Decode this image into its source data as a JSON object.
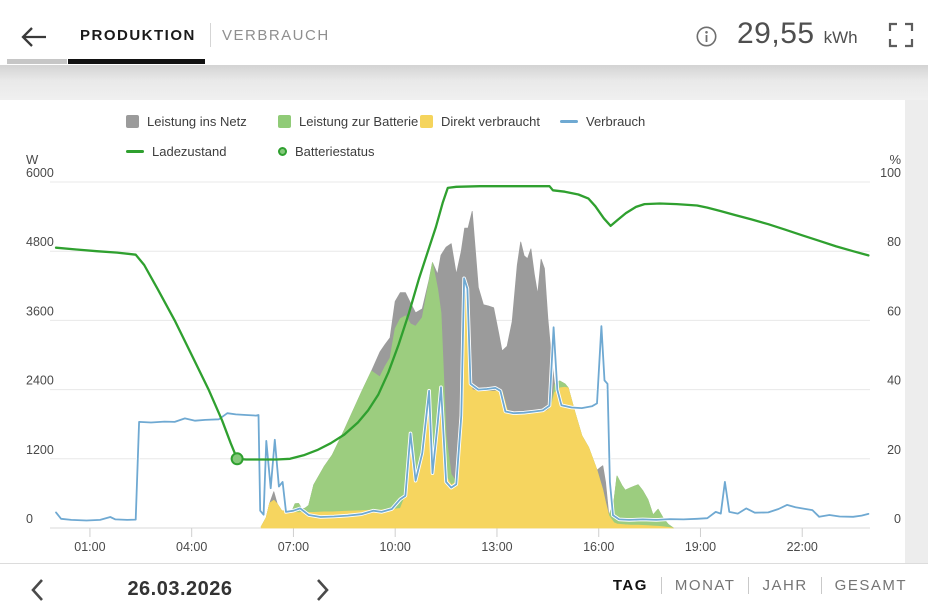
{
  "header": {
    "tabs": [
      {
        "label": "PRODUKTION",
        "active": true
      },
      {
        "label": "VERBRAUCH",
        "active": false
      }
    ],
    "total_value": "29,55",
    "total_unit": "kWh",
    "back_icon": "back-arrow",
    "info_icon": "info-circle",
    "fullscreen_icon": "fullscreen-corners"
  },
  "date_nav": {
    "date": "26.03.2026",
    "prev_icon": "chevron-left",
    "next_icon": "chevron-right"
  },
  "range_tabs": [
    {
      "label": "TAG",
      "active": true
    },
    {
      "label": "MONAT",
      "active": false
    },
    {
      "label": "JAHR",
      "active": false
    },
    {
      "label": "GESAMT",
      "active": false
    }
  ],
  "chart_data": {
    "type": "area",
    "stacked_areas": true,
    "x_unit": "hours",
    "x_ticks": [
      "01:00",
      "04:00",
      "07:00",
      "10:00",
      "13:00",
      "16:00",
      "19:00",
      "22:00"
    ],
    "x_tick_hours": [
      1,
      4,
      7,
      10,
      13,
      16,
      19,
      22
    ],
    "x_range": [
      0,
      24
    ],
    "w_axis": {
      "label": "W",
      "ticks": [
        0,
        1200,
        2400,
        3600,
        4800,
        6000
      ],
      "max": 6000
    },
    "pct_axis": {
      "label": "%",
      "ticks": [
        0,
        20,
        40,
        60,
        80,
        100
      ],
      "max": 100
    },
    "grid": true,
    "legend": [
      {
        "label": "Leistung ins Netz",
        "shape": "square",
        "color": "#9b9b9b"
      },
      {
        "label": "Leistung zur Batterie",
        "shape": "square",
        "color": "#90cb77"
      },
      {
        "label": "Direkt verbraucht",
        "shape": "square",
        "color": "#f5d45c"
      },
      {
        "label": "Verbrauch",
        "shape": "line",
        "color": "#6fa9d2"
      },
      {
        "label": "Ladezustand",
        "shape": "line",
        "color": "#2fa02f"
      },
      {
        "label": "Batteriestatus",
        "shape": "circle",
        "color": "#85c97b",
        "border": "#2fa02f"
      }
    ],
    "colors": {
      "ins_netz": "#9b9b9b",
      "zur_batterie": "#9ccd7f",
      "direkt": "#f6d55f",
      "verbrauch": "#6fa9d2",
      "ladezustand": "#2fa02f",
      "grid": "#e8e8e8",
      "axis_text": "#4a4a4a"
    },
    "stack": {
      "t": [
        6.05,
        6.2,
        6.3,
        6.42,
        6.52,
        6.65,
        6.8,
        6.95,
        7.05,
        7.15,
        7.25,
        7.35,
        7.45,
        7.6,
        7.9,
        8.15,
        8.5,
        9.0,
        9.3,
        9.55,
        9.7,
        9.85,
        10.0,
        10.15,
        10.3,
        10.45,
        10.6,
        10.8,
        11.0,
        11.1,
        11.25,
        11.35,
        11.5,
        11.65,
        11.8,
        11.95,
        12.05,
        12.15,
        12.27,
        12.45,
        12.6,
        12.75,
        12.9,
        13.05,
        13.15,
        13.3,
        13.45,
        13.6,
        13.7,
        13.8,
        13.9,
        14.0,
        14.1,
        14.2,
        14.3,
        14.4,
        14.5,
        14.6,
        14.7,
        14.85,
        15.0,
        15.1,
        15.3,
        15.5,
        15.7,
        15.95,
        16.05,
        16.12,
        16.2,
        16.3,
        16.45,
        16.54,
        16.68,
        16.78,
        16.95,
        17.16,
        17.3,
        17.45,
        17.6,
        17.75,
        17.9,
        18.05,
        18.2
      ],
      "direkt": [
        20,
        180,
        430,
        480,
        420,
        300,
        280,
        280,
        270,
        265,
        270,
        265,
        270,
        270,
        280,
        280,
        290,
        300,
        310,
        310,
        320,
        320,
        330,
        340,
        560,
        1640,
        820,
        1300,
        2380,
        950,
        1800,
        2400,
        900,
        750,
        800,
        2000,
        4250,
        3300,
        2400,
        2370,
        2370,
        2370,
        2370,
        2375,
        2380,
        2050,
        2000,
        1960,
        1960,
        1970,
        1970,
        1990,
        2000,
        2000,
        2010,
        2020,
        2040,
        2100,
        2350,
        2430,
        2440,
        2430,
        2000,
        1600,
        1400,
        1000,
        800,
        660,
        450,
        210,
        90,
        70,
        60,
        55,
        50,
        50,
        45,
        40,
        35,
        30,
        20,
        10,
        0
      ],
      "zur_batterie": [
        0,
        0,
        0,
        0,
        0,
        0,
        0,
        0,
        150,
        160,
        60,
        80,
        120,
        480,
        780,
        990,
        1410,
        2050,
        2410,
        2310,
        2480,
        2630,
        3130,
        3290,
        3120,
        1900,
        2680,
        2350,
        1900,
        3650,
        2350,
        1330,
        700,
        180,
        0,
        0,
        0,
        0,
        0,
        0,
        0,
        0,
        0,
        0,
        0,
        0,
        0,
        0,
        0,
        0,
        0,
        0,
        0,
        0,
        0,
        0,
        0,
        0,
        140,
        120,
        60,
        0,
        0,
        0,
        0,
        0,
        0,
        0,
        0,
        0,
        380,
        830,
        680,
        600,
        650,
        700,
        600,
        450,
        190,
        295,
        150,
        50,
        0
      ],
      "ins_netz": [
        0,
        0,
        0,
        150,
        0,
        0,
        0,
        0,
        0,
        0,
        0,
        0,
        0,
        0,
        0,
        0,
        0,
        0,
        0,
        430,
        380,
        350,
        470,
        450,
        400,
        360,
        230,
        150,
        20,
        0,
        250,
        1000,
        3270,
        4000,
        3600,
        2800,
        950,
        1900,
        3090,
        1800,
        1500,
        1480,
        1450,
        1000,
        690,
        1100,
        1580,
        2600,
        3000,
        2750,
        2700,
        2850,
        2400,
        2050,
        2650,
        2480,
        1600,
        900,
        0,
        0,
        0,
        0,
        0,
        0,
        0,
        0,
        250,
        420,
        350,
        0,
        0,
        0,
        0,
        0,
        0,
        0,
        0,
        0,
        0,
        0,
        0,
        0,
        0
      ]
    },
    "verbrauch_w": [
      [
        0,
        270
      ],
      [
        0.15,
        160
      ],
      [
        0.45,
        140
      ],
      [
        0.9,
        130
      ],
      [
        1.3,
        140
      ],
      [
        1.6,
        190
      ],
      [
        1.75,
        150
      ],
      [
        2.1,
        140
      ],
      [
        2.35,
        145
      ],
      [
        2.45,
        1840
      ],
      [
        2.8,
        1830
      ],
      [
        3.2,
        1845
      ],
      [
        3.5,
        1840
      ],
      [
        3.8,
        1900
      ],
      [
        4.1,
        1860
      ],
      [
        4.4,
        1875
      ],
      [
        4.8,
        1885
      ],
      [
        5.05,
        1990
      ],
      [
        5.3,
        1970
      ],
      [
        5.6,
        1960
      ],
      [
        5.9,
        1950
      ],
      [
        5.97,
        1960
      ],
      [
        6.02,
        300
      ],
      [
        6.12,
        230
      ],
      [
        6.2,
        1510
      ],
      [
        6.33,
        690
      ],
      [
        6.45,
        1530
      ],
      [
        6.57,
        720
      ],
      [
        6.68,
        800
      ],
      [
        6.78,
        280
      ],
      [
        7.0,
        300
      ],
      [
        7.2,
        340
      ],
      [
        7.45,
        225
      ],
      [
        7.8,
        190
      ],
      [
        8.2,
        200
      ],
      [
        8.6,
        215
      ],
      [
        9.0,
        240
      ],
      [
        9.35,
        300
      ],
      [
        9.6,
        280
      ],
      [
        9.9,
        330
      ],
      [
        10.15,
        500
      ],
      [
        10.3,
        560
      ],
      [
        10.45,
        1640
      ],
      [
        10.6,
        820
      ],
      [
        10.8,
        1300
      ],
      [
        11.0,
        2380
      ],
      [
        11.1,
        950
      ],
      [
        11.25,
        1800
      ],
      [
        11.35,
        2440
      ],
      [
        11.5,
        800
      ],
      [
        11.65,
        700
      ],
      [
        11.8,
        760
      ],
      [
        11.95,
        1950
      ],
      [
        12.03,
        4330
      ],
      [
        12.13,
        4150
      ],
      [
        12.22,
        2500
      ],
      [
        12.45,
        2400
      ],
      [
        12.7,
        2410
      ],
      [
        12.95,
        2430
      ],
      [
        13.1,
        2380
      ],
      [
        13.25,
        2020
      ],
      [
        13.5,
        1990
      ],
      [
        13.8,
        2000
      ],
      [
        14.1,
        2020
      ],
      [
        14.35,
        2040
      ],
      [
        14.55,
        2120
      ],
      [
        14.67,
        3480
      ],
      [
        14.78,
        2400
      ],
      [
        14.9,
        2130
      ],
      [
        15.2,
        2090
      ],
      [
        15.5,
        2080
      ],
      [
        15.8,
        2110
      ],
      [
        15.95,
        2160
      ],
      [
        16.08,
        3500
      ],
      [
        16.17,
        2560
      ],
      [
        16.26,
        2500
      ],
      [
        16.33,
        800
      ],
      [
        16.42,
        220
      ],
      [
        16.6,
        150
      ],
      [
        16.9,
        140
      ],
      [
        17.3,
        150
      ],
      [
        17.7,
        140
      ],
      [
        18.1,
        155
      ],
      [
        18.5,
        150
      ],
      [
        18.9,
        160
      ],
      [
        19.2,
        170
      ],
      [
        19.45,
        280
      ],
      [
        19.6,
        250
      ],
      [
        19.72,
        800
      ],
      [
        19.85,
        280
      ],
      [
        20.1,
        250
      ],
      [
        20.35,
        340
      ],
      [
        20.6,
        265
      ],
      [
        21.0,
        270
      ],
      [
        21.3,
        330
      ],
      [
        21.55,
        400
      ],
      [
        21.8,
        360
      ],
      [
        22.1,
        330
      ],
      [
        22.3,
        310
      ],
      [
        22.5,
        195
      ],
      [
        22.8,
        225
      ],
      [
        23.1,
        200
      ],
      [
        23.5,
        195
      ],
      [
        23.75,
        215
      ],
      [
        23.95,
        245
      ]
    ],
    "ladezustand_pct": [
      [
        0,
        81
      ],
      [
        0.6,
        80.5
      ],
      [
        1.2,
        80
      ],
      [
        1.8,
        79.6
      ],
      [
        2.35,
        79
      ],
      [
        2.6,
        76
      ],
      [
        3.0,
        69
      ],
      [
        3.5,
        60
      ],
      [
        4.0,
        50
      ],
      [
        4.5,
        40
      ],
      [
        4.9,
        31
      ],
      [
        5.15,
        24.5
      ],
      [
        5.34,
        20
      ],
      [
        5.6,
        19.8
      ],
      [
        6.0,
        19.8
      ],
      [
        6.5,
        19.8
      ],
      [
        6.9,
        20
      ],
      [
        7.3,
        21
      ],
      [
        7.7,
        22.5
      ],
      [
        8.1,
        24.5
      ],
      [
        8.5,
        27
      ],
      [
        8.9,
        30.5
      ],
      [
        9.2,
        34
      ],
      [
        9.5,
        38.5
      ],
      [
        9.8,
        45
      ],
      [
        10.1,
        53
      ],
      [
        10.4,
        62
      ],
      [
        10.7,
        72
      ],
      [
        11.0,
        81
      ],
      [
        11.2,
        87
      ],
      [
        11.4,
        94
      ],
      [
        11.55,
        98.3
      ],
      [
        11.8,
        98.6
      ],
      [
        12.5,
        98.8
      ],
      [
        13.5,
        98.8
      ],
      [
        14.55,
        98.8
      ],
      [
        14.65,
        97.6
      ],
      [
        15.0,
        97.2
      ],
      [
        15.4,
        96.4
      ],
      [
        15.7,
        95.2
      ],
      [
        15.9,
        93
      ],
      [
        16.15,
        89.5
      ],
      [
        16.35,
        87.3
      ],
      [
        16.55,
        89
      ],
      [
        16.8,
        91
      ],
      [
        17.1,
        92.8
      ],
      [
        17.35,
        93.6
      ],
      [
        17.8,
        93.8
      ],
      [
        18.3,
        93.6
      ],
      [
        18.9,
        93.2
      ],
      [
        19.2,
        92.6
      ],
      [
        19.6,
        91.6
      ],
      [
        20.0,
        90.5
      ],
      [
        20.5,
        89.2
      ],
      [
        21.0,
        87.8
      ],
      [
        21.5,
        86.2
      ],
      [
        22.0,
        84.6
      ],
      [
        22.5,
        83
      ],
      [
        23.0,
        81.4
      ],
      [
        23.5,
        80
      ],
      [
        23.95,
        78.8
      ]
    ],
    "batteriestatus_marker": {
      "t": 5.34,
      "pct": 20
    }
  }
}
